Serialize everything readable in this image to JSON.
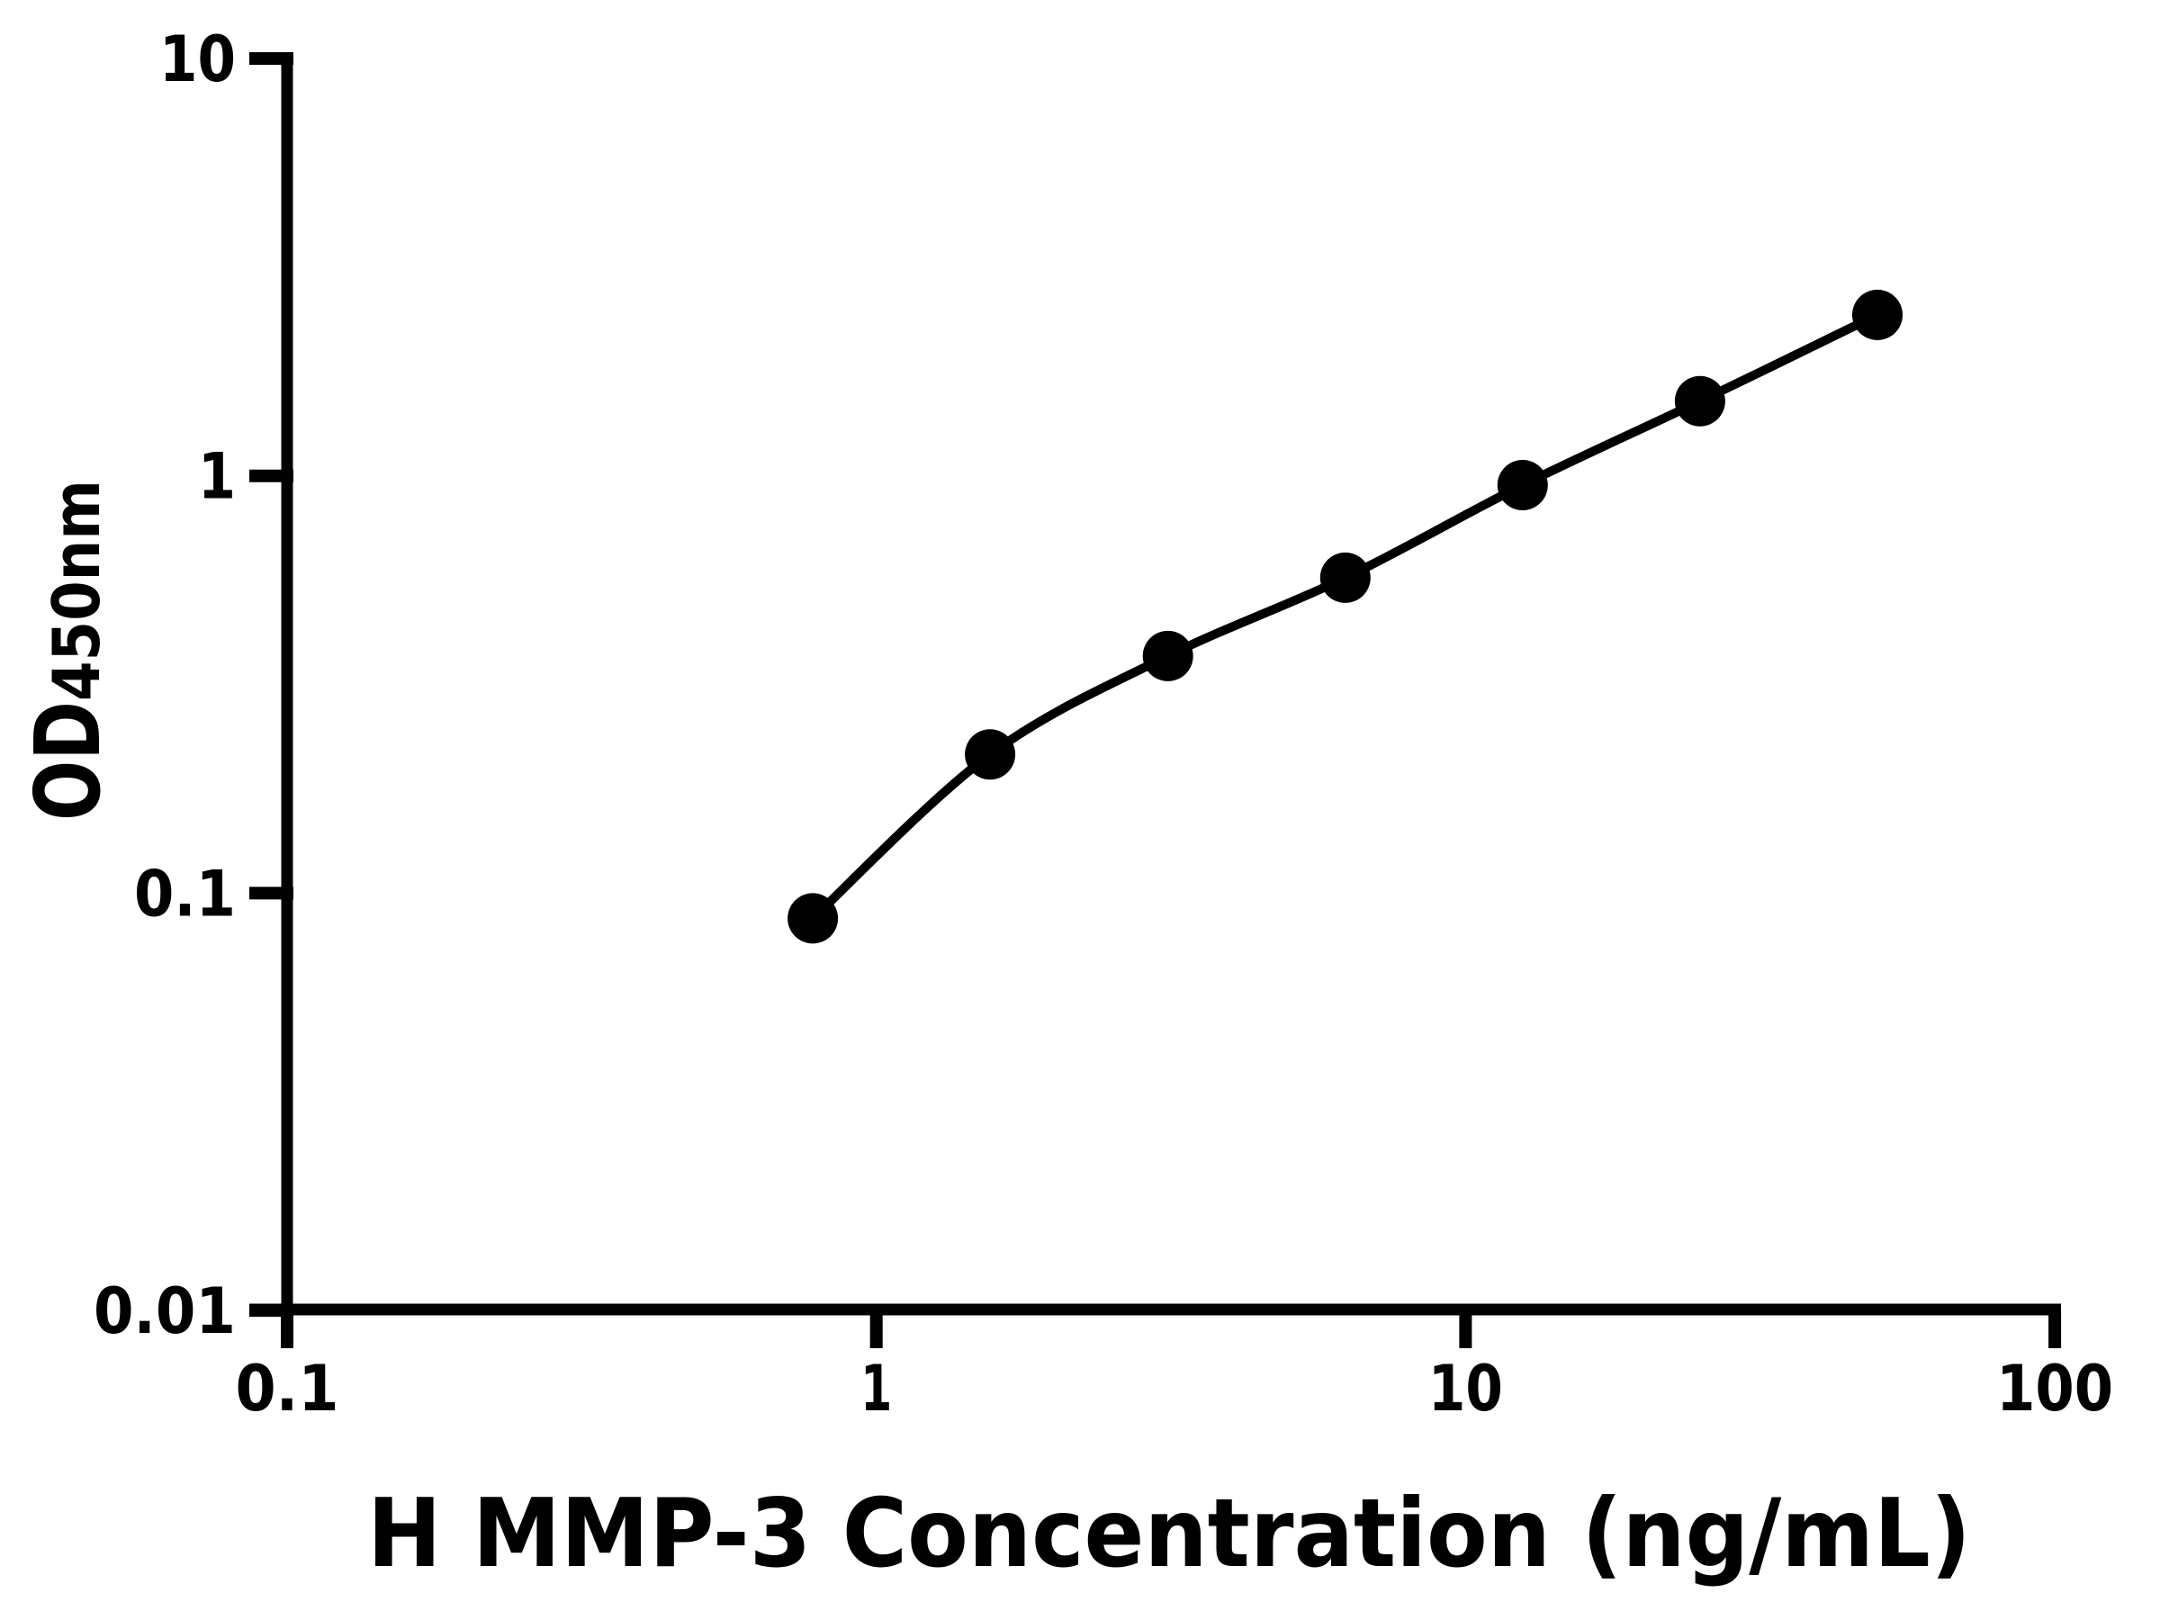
{
  "figure": {
    "background_color": "#ffffff",
    "ink_color": "#000000"
  },
  "chart_data": {
    "type": "scatter",
    "title": "",
    "xlabel": "H MMP-3 Concentration (ng/mL)",
    "ylabel_main": "OD",
    "ylabel_sub": "450nm",
    "x_scale": "log",
    "y_scale": "log",
    "xlim": [
      0.1,
      100
    ],
    "ylim": [
      0.01,
      10
    ],
    "grid": false,
    "legend": false,
    "x_ticks": [
      {
        "value": 0.1,
        "label": "0.1"
      },
      {
        "value": 1,
        "label": "1"
      },
      {
        "value": 10,
        "label": "10"
      },
      {
        "value": 100,
        "label": "100"
      }
    ],
    "y_ticks": [
      {
        "value": 10,
        "label": "10"
      },
      {
        "value": 1,
        "label": "1"
      },
      {
        "value": 0.1,
        "label": "0.1"
      },
      {
        "value": 0.01,
        "label": "0.01"
      }
    ],
    "series": [
      {
        "marker": "filled-circle",
        "color": "#000000",
        "line": "smooth-fit",
        "points": [
          {
            "x": 0.78,
            "y": 0.087
          },
          {
            "x": 1.56,
            "y": 0.215
          },
          {
            "x": 3.125,
            "y": 0.37
          },
          {
            "x": 6.25,
            "y": 0.57
          },
          {
            "x": 12.5,
            "y": 0.95
          },
          {
            "x": 25,
            "y": 1.51
          },
          {
            "x": 50,
            "y": 2.43
          }
        ]
      }
    ]
  }
}
